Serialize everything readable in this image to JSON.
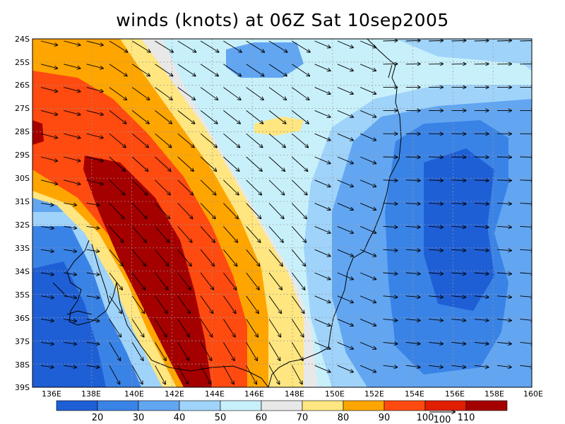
{
  "title": "winds (knots) at 06Z Sat 10sep2005",
  "lat_labels": [
    "24S",
    "25S",
    "26S",
    "27S",
    "28S",
    "29S",
    "30S",
    "31S",
    "32S",
    "33S",
    "34S",
    "35S",
    "36S",
    "37S",
    "38S",
    "39S"
  ],
  "lon_labels": [
    "136E",
    "138E",
    "140E",
    "142E",
    "144E",
    "146E",
    "148E",
    "150E",
    "152E",
    "154E",
    "156E",
    "158E",
    "160E"
  ],
  "colorbar": {
    "levels": [
      "20",
      "30",
      "40",
      "50",
      "60",
      "70",
      "80",
      "90",
      "100",
      "110"
    ],
    "colors": [
      "#1f5fd6",
      "#3a83e6",
      "#62a6f2",
      "#9fd3fa",
      "#c8f0fb",
      "#e8e8e8",
      "#ffe680",
      "#ffa500",
      "#ff4a10",
      "#e01e00",
      "#a50000"
    ]
  },
  "vector_ref": {
    "label": "100"
  },
  "colors": {
    "land_line": "#000000",
    "grid": "#999999"
  }
}
